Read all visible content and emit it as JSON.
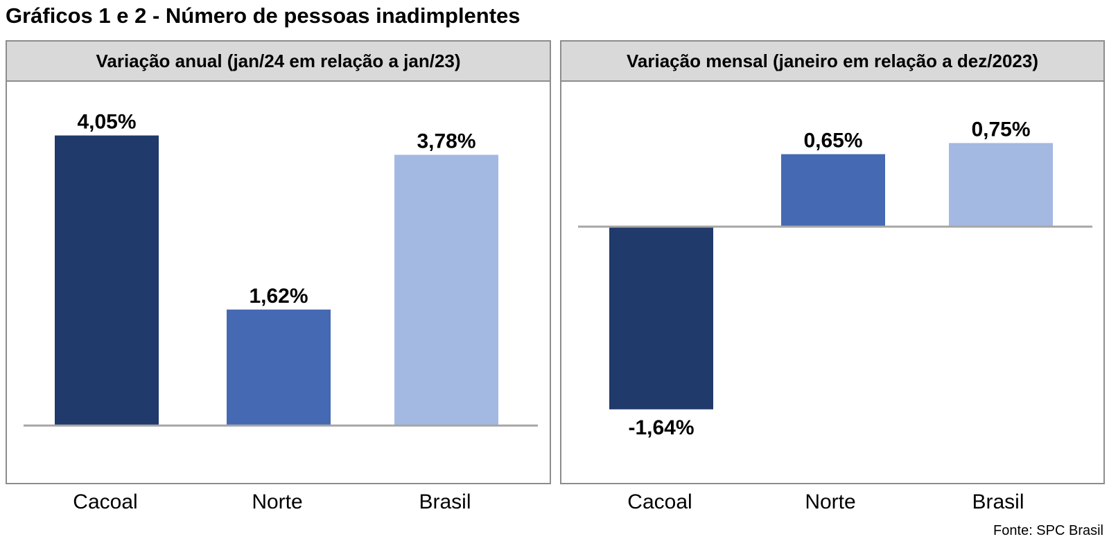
{
  "title": "Gráficos 1 e 2 - Número de pessoas inadimplentes",
  "source": "Fonte: SPC Brasil",
  "colors": {
    "cacoal": "#1f3a6b",
    "norte": "#4569b2",
    "brasil": "#a3b9e2",
    "axis": "#a6a6a6",
    "header_bg": "#d9d9d9",
    "border": "#8c8c8c"
  },
  "chart_data": [
    {
      "type": "bar",
      "title": "Variação anual (jan/24 em relação a jan/23)",
      "categories": [
        "Cacoal",
        "Norte",
        "Brasil"
      ],
      "values": [
        4.05,
        1.62,
        3.78
      ],
      "labels": [
        "4,05%",
        "1,62%",
        "3,78%"
      ],
      "unit": "%",
      "ylim": [
        -0.8,
        4.8
      ],
      "grid": false,
      "legend": false,
      "xlabel": "",
      "ylabel": ""
    },
    {
      "type": "bar",
      "title": "Variação mensal (janeiro em relação a dez/2023)",
      "categories": [
        "Cacoal",
        "Norte",
        "Brasil"
      ],
      "values": [
        -1.64,
        0.65,
        0.75
      ],
      "labels": [
        "-1,64%",
        "0,65%",
        "0,75%"
      ],
      "unit": "%",
      "ylim": [
        -2.3,
        1.3
      ],
      "grid": false,
      "legend": false,
      "xlabel": "",
      "ylabel": ""
    }
  ]
}
